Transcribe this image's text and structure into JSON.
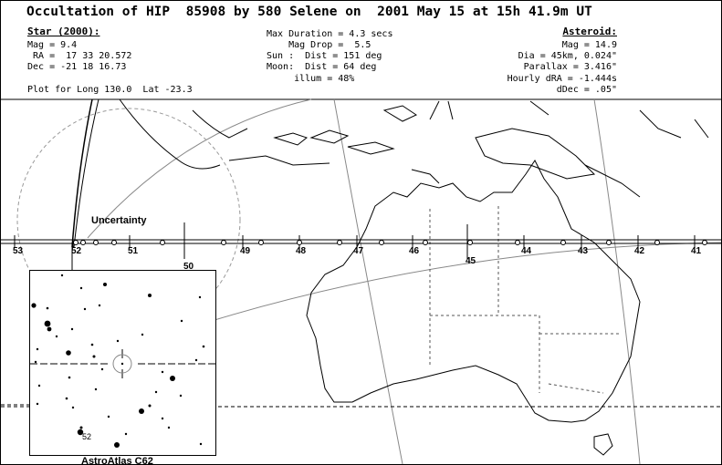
{
  "title": "Occultation of HIP  85908 by 580 Selene on  2001 May 15 at 15h 41.9m UT",
  "star": {
    "heading": "Star (2000):",
    "mag": "Mag = 9.4",
    "ra": " RA =  17 33 20.572",
    "dec": "Dec = -21 18 16.73",
    "plot_for": "Plot for Long 130.0  Lat -23.3"
  },
  "event": {
    "max_duration": "Max Duration = 4.3 secs",
    "mag_drop": "    Mag Drop =  5.5",
    "sun": "Sun :  Dist = 151 deg",
    "moon": "Moon:  Dist = 64 deg",
    "illum": "     illum = 48%"
  },
  "asteroid": {
    "heading": "Asteroid:",
    "mag": "Mag = 14.9",
    "dia": "Dia = 45km, 0.024\"",
    "parallax": "Parallax = 3.416\"",
    "hourly_dra": "Hourly dRA = -1.444s",
    "ddec": "dDec = .05\""
  },
  "uncertainty_label": "Uncertainty",
  "path_ticks": [
    "53",
    "52",
    "51",
    "50",
    "49",
    "48",
    "47",
    "46",
    "45",
    "44",
    "43",
    "42",
    "41"
  ],
  "inset": {
    "caption": "AstroAtlas C62",
    "star_label": "52"
  }
}
